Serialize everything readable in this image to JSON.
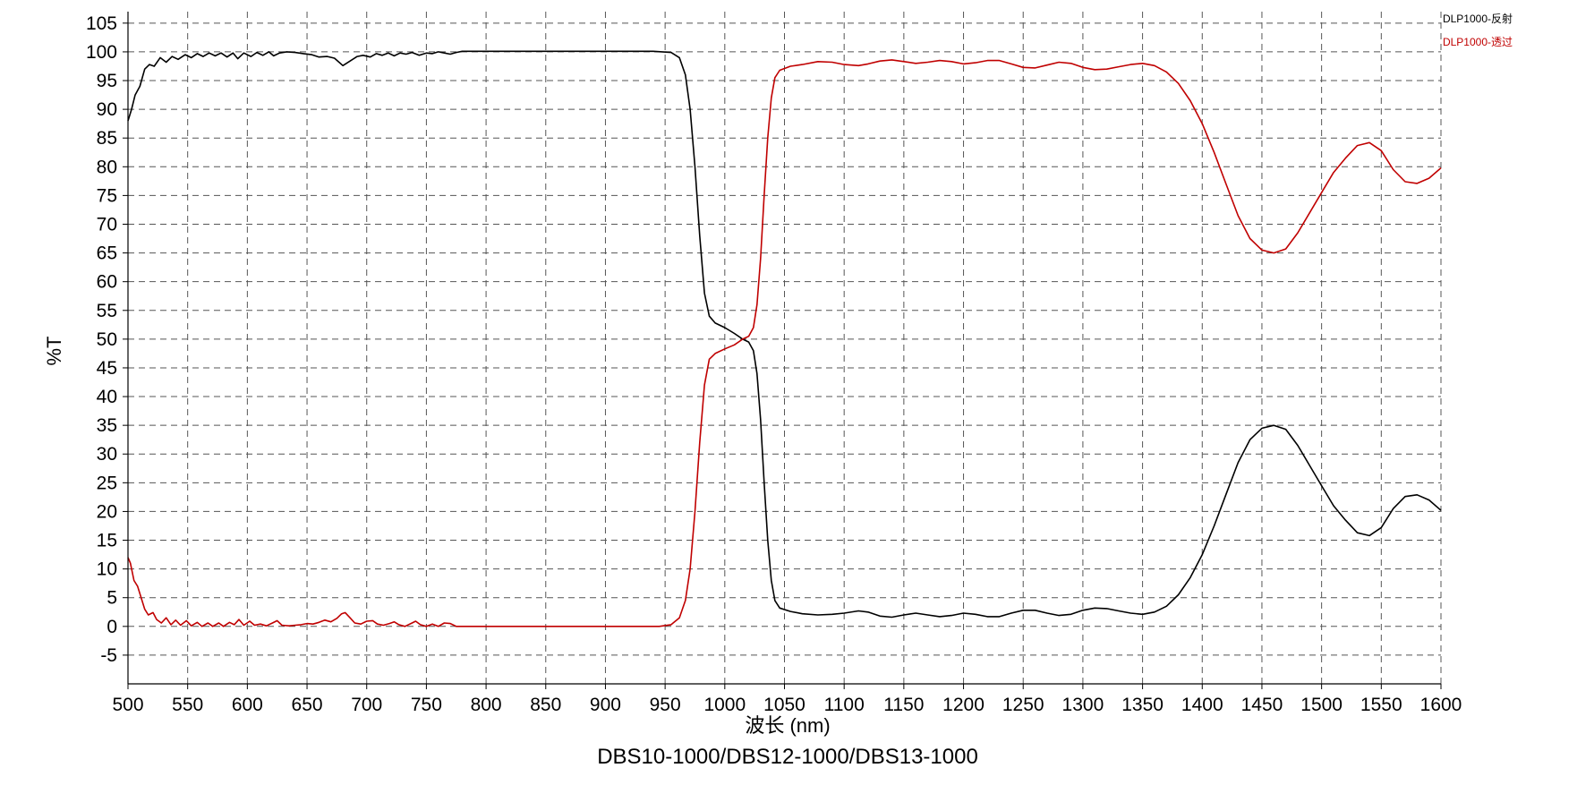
{
  "chart_data": {
    "type": "line",
    "title": "",
    "caption": "DBS10-1000/DBS12-1000/DBS13-1000",
    "xlabel": "波长 (nm)",
    "ylabel": "%T",
    "xlim": [
      500,
      1600
    ],
    "ylim": [
      -10,
      107
    ],
    "x_ticks": [
      500,
      550,
      600,
      650,
      700,
      750,
      800,
      850,
      900,
      950,
      1000,
      1050,
      1100,
      1150,
      1200,
      1250,
      1300,
      1350,
      1400,
      1450,
      1500,
      1550,
      1600
    ],
    "y_ticks": [
      -5,
      0,
      5,
      10,
      15,
      20,
      25,
      30,
      35,
      40,
      45,
      50,
      55,
      60,
      65,
      70,
      75,
      80,
      85,
      90,
      95,
      100,
      105
    ],
    "grid": true,
    "legend_position": "top-right",
    "series": [
      {
        "name": "DLP1000-反射",
        "color": "#000000",
        "points": [
          [
            500,
            88
          ],
          [
            503,
            90
          ],
          [
            506,
            92.5
          ],
          [
            510,
            94
          ],
          [
            514,
            97
          ],
          [
            518,
            97.8
          ],
          [
            522,
            97.5
          ],
          [
            527,
            99
          ],
          [
            532,
            98.2
          ],
          [
            537,
            99.2
          ],
          [
            542,
            98.7
          ],
          [
            548,
            99.5
          ],
          [
            553,
            99
          ],
          [
            558,
            99.7
          ],
          [
            563,
            99.2
          ],
          [
            568,
            99.8
          ],
          [
            573,
            99.3
          ],
          [
            578,
            99.8
          ],
          [
            583,
            99.1
          ],
          [
            588,
            99.8
          ],
          [
            592,
            98.8
          ],
          [
            597,
            99.8
          ],
          [
            603,
            99.2
          ],
          [
            608,
            99.9
          ],
          [
            613,
            99.4
          ],
          [
            618,
            100
          ],
          [
            622,
            99.3
          ],
          [
            627,
            99.8
          ],
          [
            633,
            100
          ],
          [
            640,
            99.9
          ],
          [
            647,
            99.7
          ],
          [
            654,
            99.5
          ],
          [
            660,
            99.1
          ],
          [
            667,
            99.2
          ],
          [
            673,
            98.9
          ],
          [
            680,
            97.6
          ],
          [
            686,
            98.4
          ],
          [
            692,
            99.2
          ],
          [
            697,
            99.4
          ],
          [
            703,
            99.1
          ],
          [
            708,
            99.7
          ],
          [
            713,
            99.4
          ],
          [
            718,
            99.8
          ],
          [
            723,
            99.3
          ],
          [
            728,
            99.8
          ],
          [
            733,
            99.6
          ],
          [
            738,
            99.9
          ],
          [
            744,
            99.4
          ],
          [
            750,
            99.8
          ],
          [
            755,
            99.7
          ],
          [
            760,
            100
          ],
          [
            765,
            99.8
          ],
          [
            770,
            99.6
          ],
          [
            775,
            99.9
          ],
          [
            780,
            100.1
          ],
          [
            800,
            100.1
          ],
          [
            850,
            100.1
          ],
          [
            900,
            100.1
          ],
          [
            940,
            100.1
          ],
          [
            955,
            99.9
          ],
          [
            962,
            99
          ],
          [
            967,
            96
          ],
          [
            971,
            90
          ],
          [
            975,
            80
          ],
          [
            979,
            68
          ],
          [
            983,
            58
          ],
          [
            987,
            54
          ],
          [
            992,
            52.8
          ],
          [
            1000,
            52
          ],
          [
            1008,
            51
          ],
          [
            1015,
            50
          ],
          [
            1020,
            49.5
          ],
          [
            1024,
            48
          ],
          [
            1027,
            44
          ],
          [
            1030,
            36
          ],
          [
            1033,
            25
          ],
          [
            1036,
            15
          ],
          [
            1039,
            8
          ],
          [
            1042,
            4.5
          ],
          [
            1046,
            3.2
          ],
          [
            1055,
            2.6
          ],
          [
            1065,
            2.2
          ],
          [
            1078,
            2
          ],
          [
            1090,
            2.1
          ],
          [
            1100,
            2.3
          ],
          [
            1112,
            2.7
          ],
          [
            1120,
            2.5
          ],
          [
            1130,
            1.8
          ],
          [
            1140,
            1.6
          ],
          [
            1150,
            2
          ],
          [
            1160,
            2.3
          ],
          [
            1170,
            2
          ],
          [
            1180,
            1.7
          ],
          [
            1190,
            1.9
          ],
          [
            1200,
            2.3
          ],
          [
            1210,
            2.1
          ],
          [
            1220,
            1.7
          ],
          [
            1230,
            1.7
          ],
          [
            1240,
            2.3
          ],
          [
            1250,
            2.8
          ],
          [
            1260,
            2.8
          ],
          [
            1270,
            2.3
          ],
          [
            1280,
            1.9
          ],
          [
            1290,
            2.1
          ],
          [
            1300,
            2.8
          ],
          [
            1310,
            3.2
          ],
          [
            1320,
            3.1
          ],
          [
            1330,
            2.7
          ],
          [
            1340,
            2.3
          ],
          [
            1350,
            2.1
          ],
          [
            1360,
            2.5
          ],
          [
            1370,
            3.5
          ],
          [
            1380,
            5.5
          ],
          [
            1390,
            8.5
          ],
          [
            1400,
            12.5
          ],
          [
            1410,
            17.5
          ],
          [
            1420,
            23
          ],
          [
            1430,
            28.5
          ],
          [
            1440,
            32.5
          ],
          [
            1450,
            34.5
          ],
          [
            1460,
            35
          ],
          [
            1470,
            34.3
          ],
          [
            1480,
            31.5
          ],
          [
            1490,
            28
          ],
          [
            1500,
            24.5
          ],
          [
            1510,
            21
          ],
          [
            1520,
            18.5
          ],
          [
            1530,
            16.3
          ],
          [
            1540,
            15.8
          ],
          [
            1550,
            17.2
          ],
          [
            1560,
            20.5
          ],
          [
            1570,
            22.6
          ],
          [
            1580,
            22.9
          ],
          [
            1590,
            22
          ],
          [
            1600,
            20.2
          ]
        ]
      },
      {
        "name": "DLP1000-透过",
        "color": "#c00000",
        "points": [
          [
            500,
            12
          ],
          [
            502,
            11
          ],
          [
            505,
            8
          ],
          [
            508,
            7
          ],
          [
            511,
            5
          ],
          [
            514,
            3
          ],
          [
            517,
            2
          ],
          [
            521,
            2.4
          ],
          [
            524,
            1.2
          ],
          [
            528,
            0.6
          ],
          [
            532,
            1.5
          ],
          [
            536,
            0.3
          ],
          [
            540,
            1.1
          ],
          [
            544,
            0.2
          ],
          [
            549,
            1
          ],
          [
            553,
            0.1
          ],
          [
            558,
            0.7
          ],
          [
            562,
            0
          ],
          [
            567,
            0.6
          ],
          [
            571,
            0
          ],
          [
            576,
            0.6
          ],
          [
            580,
            0
          ],
          [
            585,
            0.7
          ],
          [
            589,
            0.3
          ],
          [
            593,
            1.2
          ],
          [
            597,
            0.2
          ],
          [
            602,
            0.9
          ],
          [
            606,
            0.2
          ],
          [
            611,
            0.4
          ],
          [
            616,
            0.1
          ],
          [
            621,
            0.6
          ],
          [
            625,
            1
          ],
          [
            629,
            0.2
          ],
          [
            635,
            0.1
          ],
          [
            640,
            0.2
          ],
          [
            645,
            0.3
          ],
          [
            650,
            0.5
          ],
          [
            655,
            0.4
          ],
          [
            660,
            0.7
          ],
          [
            665,
            1.1
          ],
          [
            670,
            0.8
          ],
          [
            675,
            1.4
          ],
          [
            679,
            2.2
          ],
          [
            682,
            2.4
          ],
          [
            686,
            1.5
          ],
          [
            690,
            0.6
          ],
          [
            695,
            0.4
          ],
          [
            700,
            0.9
          ],
          [
            705,
            1
          ],
          [
            709,
            0.4
          ],
          [
            714,
            0.2
          ],
          [
            719,
            0.5
          ],
          [
            723,
            0.8
          ],
          [
            727,
            0.3
          ],
          [
            732,
            0
          ],
          [
            737,
            0.5
          ],
          [
            741,
            0.9
          ],
          [
            745,
            0.3
          ],
          [
            750,
            0
          ],
          [
            755,
            0.4
          ],
          [
            760,
            0
          ],
          [
            765,
            0.6
          ],
          [
            770,
            0.5
          ],
          [
            775,
            0
          ],
          [
            800,
            0
          ],
          [
            850,
            0
          ],
          [
            900,
            0
          ],
          [
            945,
            0
          ],
          [
            955,
            0.3
          ],
          [
            962,
            1.5
          ],
          [
            967,
            4.5
          ],
          [
            971,
            10
          ],
          [
            975,
            20
          ],
          [
            979,
            32
          ],
          [
            983,
            42
          ],
          [
            987,
            46.5
          ],
          [
            992,
            47.5
          ],
          [
            1000,
            48.3
          ],
          [
            1008,
            49
          ],
          [
            1015,
            50
          ],
          [
            1020,
            50.5
          ],
          [
            1024,
            52
          ],
          [
            1027,
            56
          ],
          [
            1030,
            64
          ],
          [
            1033,
            75
          ],
          [
            1036,
            85
          ],
          [
            1039,
            92
          ],
          [
            1042,
            95.5
          ],
          [
            1046,
            96.8
          ],
          [
            1055,
            97.5
          ],
          [
            1065,
            97.8
          ],
          [
            1078,
            98.3
          ],
          [
            1090,
            98.2
          ],
          [
            1100,
            97.8
          ],
          [
            1112,
            97.6
          ],
          [
            1120,
            97.9
          ],
          [
            1130,
            98.4
          ],
          [
            1140,
            98.6
          ],
          [
            1150,
            98.3
          ],
          [
            1160,
            98
          ],
          [
            1170,
            98.2
          ],
          [
            1180,
            98.5
          ],
          [
            1190,
            98.3
          ],
          [
            1200,
            97.9
          ],
          [
            1210,
            98.1
          ],
          [
            1220,
            98.5
          ],
          [
            1230,
            98.5
          ],
          [
            1240,
            97.9
          ],
          [
            1250,
            97.3
          ],
          [
            1260,
            97.2
          ],
          [
            1270,
            97.7
          ],
          [
            1280,
            98.2
          ],
          [
            1290,
            98
          ],
          [
            1300,
            97.3
          ],
          [
            1310,
            96.9
          ],
          [
            1320,
            97
          ],
          [
            1330,
            97.4
          ],
          [
            1340,
            97.8
          ],
          [
            1350,
            98
          ],
          [
            1360,
            97.6
          ],
          [
            1370,
            96.5
          ],
          [
            1380,
            94.5
          ],
          [
            1390,
            91.5
          ],
          [
            1400,
            87.5
          ],
          [
            1410,
            82.5
          ],
          [
            1420,
            77
          ],
          [
            1430,
            71.5
          ],
          [
            1440,
            67.5
          ],
          [
            1450,
            65.5
          ],
          [
            1460,
            65
          ],
          [
            1470,
            65.7
          ],
          [
            1480,
            68.5
          ],
          [
            1490,
            72
          ],
          [
            1500,
            75.5
          ],
          [
            1510,
            79
          ],
          [
            1520,
            81.5
          ],
          [
            1530,
            83.7
          ],
          [
            1540,
            84.2
          ],
          [
            1550,
            82.8
          ],
          [
            1560,
            79.5
          ],
          [
            1570,
            77.4
          ],
          [
            1580,
            77.1
          ],
          [
            1590,
            78
          ],
          [
            1600,
            79.8
          ]
        ]
      }
    ]
  }
}
